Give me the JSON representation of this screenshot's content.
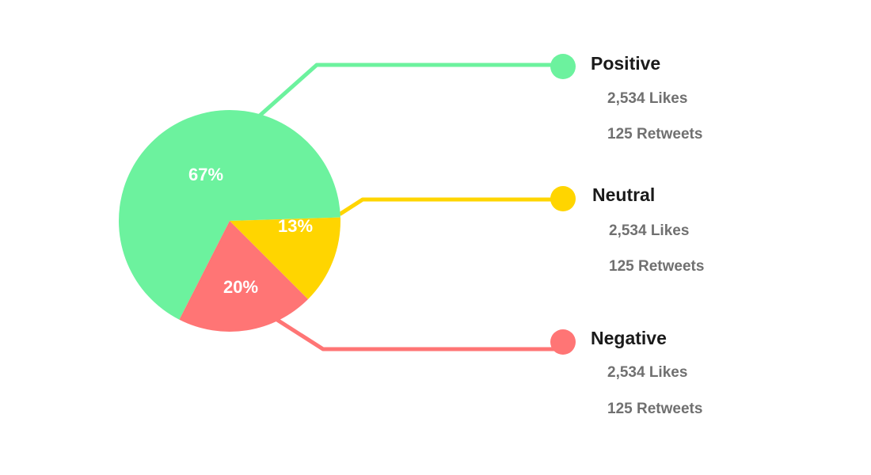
{
  "chart_data": {
    "type": "pie",
    "slices": [
      {
        "name": "Positive",
        "value": 67,
        "label": "67%",
        "color": "#6cf29e",
        "likes": "2,534 Likes",
        "retweets": "125 Retweets"
      },
      {
        "name": "Neutral",
        "value": 13,
        "label": "13%",
        "color": "#ffd500",
        "likes": "2,534 Likes",
        "retweets": "125 Retweets"
      },
      {
        "name": "Negative",
        "value": 20,
        "label": "20%",
        "color": "#ff7575",
        "likes": "2,534 Likes",
        "retweets": "125 Retweets"
      }
    ]
  }
}
